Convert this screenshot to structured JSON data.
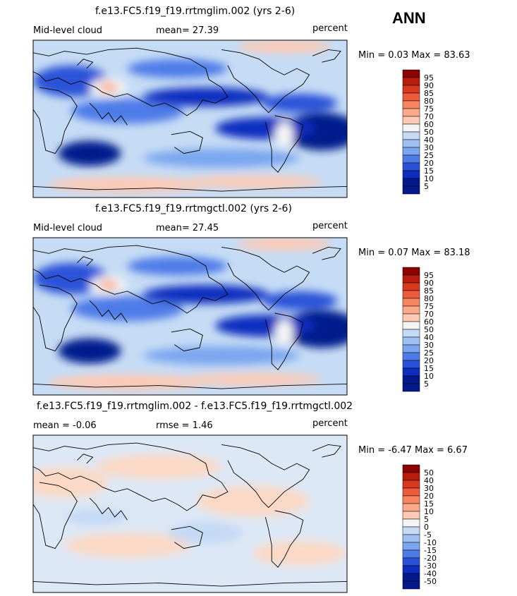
{
  "season": "ANN",
  "panels": [
    {
      "title": "f.e13.FC5.f19_f19.rrtmglim.002 (yrs 2-6)",
      "left_label": "Mid-level cloud",
      "center_label": "mean=   27.39",
      "unit": "percent",
      "minmax": "Min =    0.03  Max =   83.63",
      "colorbar": [
        "95",
        "90",
        "85",
        "80",
        "75",
        "70",
        "60",
        "50",
        "40",
        "30",
        "25",
        "20",
        "15",
        "10",
        "5"
      ]
    },
    {
      "title": "f.e13.FC5.f19_f19.rrtmgctl.002 (yrs 2-6)",
      "left_label": "Mid-level cloud",
      "center_label": "mean=   27.45",
      "unit": "percent",
      "minmax": "Min =    0.07  Max =   83.18",
      "colorbar": [
        "95",
        "90",
        "85",
        "80",
        "75",
        "70",
        "60",
        "50",
        "40",
        "30",
        "25",
        "20",
        "15",
        "10",
        "5"
      ]
    },
    {
      "title": "f.e13.FC5.f19_f19.rrtmglim.002 - f.e13.FC5.f19_f19.rrtmgctl.002",
      "left_label": "mean =   -0.06",
      "center_label": "rmse =    1.46",
      "unit": "percent",
      "minmax": "Min =   -6.47  Max =    6.67",
      "colorbar": [
        "50",
        "40",
        "30",
        "20",
        "15",
        "10",
        "5",
        "0",
        "-5",
        "-10",
        "-15",
        "-20",
        "-30",
        "-40",
        "-50"
      ]
    }
  ],
  "colors": {
    "abs_scale": [
      "#8c0000",
      "#b81c0c",
      "#d9381c",
      "#ee5a3a",
      "#f78660",
      "#fba98a",
      "#fdc9b3",
      "#f4f4f4",
      "#c4d9f4",
      "#9fc0f2",
      "#7aa6ef",
      "#4d7ce8",
      "#2952d8",
      "#0e2dc0",
      "#041a8c"
    ],
    "map_background": "#c6dcf5",
    "land_outline": "#000000"
  }
}
